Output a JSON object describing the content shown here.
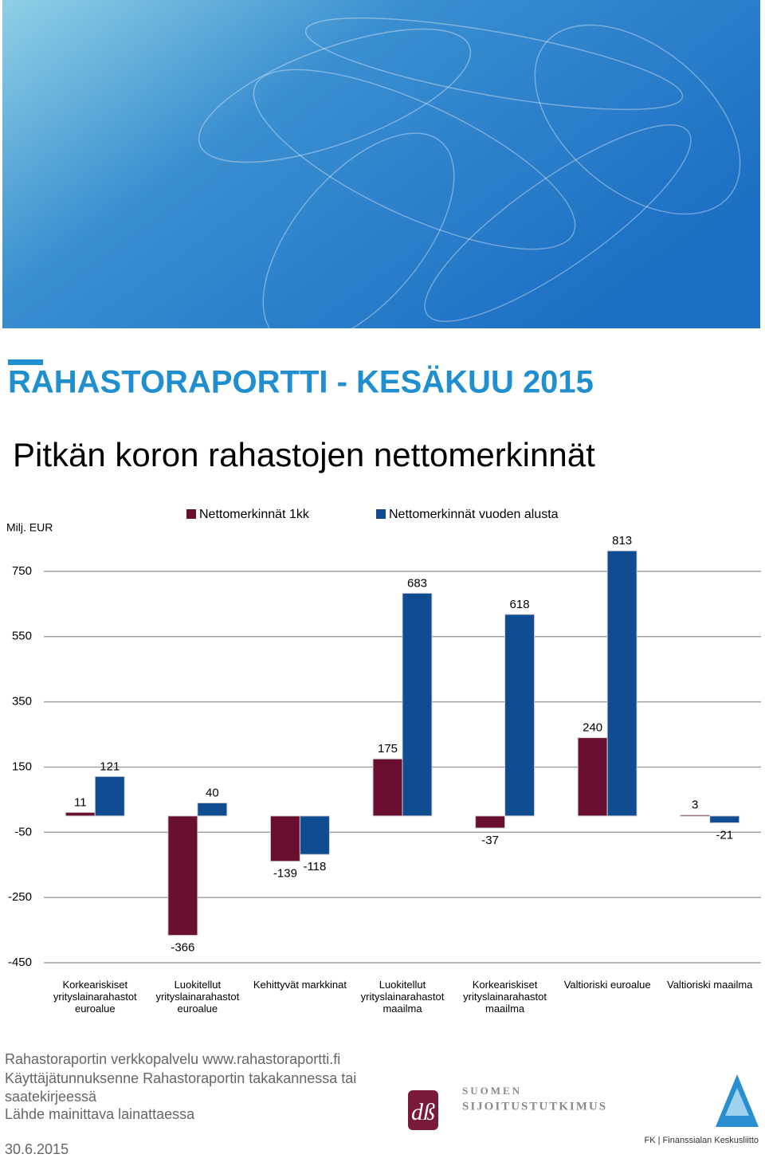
{
  "header": {
    "title": "RAHASTORAPORTTI - KESÄKUU 2015",
    "subtitle": "Pitkän koron rahastojen nettomerkinnät"
  },
  "chart_data": {
    "type": "bar",
    "y_label": "Milj. EUR",
    "categories": [
      "Korkeariskiset yrityslainarahastot euroalue",
      "Luokitellut yrityslainarahastot euroalue",
      "Kehittyvät markkinat",
      "Luokitellut yrityslainarahastot maailma",
      "Korkeariskiset yrityslainarahastot maailma",
      "Valtioriski euroalue",
      "Valtioriski maailma"
    ],
    "series": [
      {
        "name": "Nettomerkinnät 1kk",
        "color": "#6b0f32",
        "values": [
          11,
          -366,
          -139,
          175,
          -37,
          240,
          3
        ]
      },
      {
        "name": "Nettomerkinnät vuoden alusta",
        "color": "#0f4c92",
        "values": [
          121,
          40,
          -118,
          683,
          618,
          813,
          -21
        ]
      }
    ],
    "ylim": [
      -450,
      850
    ],
    "yticks": [
      -450,
      -250,
      -50,
      150,
      350,
      550,
      750
    ],
    "grid": true,
    "legend": "top"
  },
  "footer": {
    "lines": [
      "Rahastoraportin verkkopalvelu www.rahastoraportti.fi",
      "Käyttäjätunnuksenne Rahastoraportin takakannessa tai",
      "saatekirjeessä",
      "Lähde mainittava lainattaessa"
    ],
    "date": "30.6.2015",
    "logos": [
      "SUOMEN",
      "SIJOITUSTUTKIMUS",
      "FK | Finanssialan Keskusliitto"
    ]
  }
}
